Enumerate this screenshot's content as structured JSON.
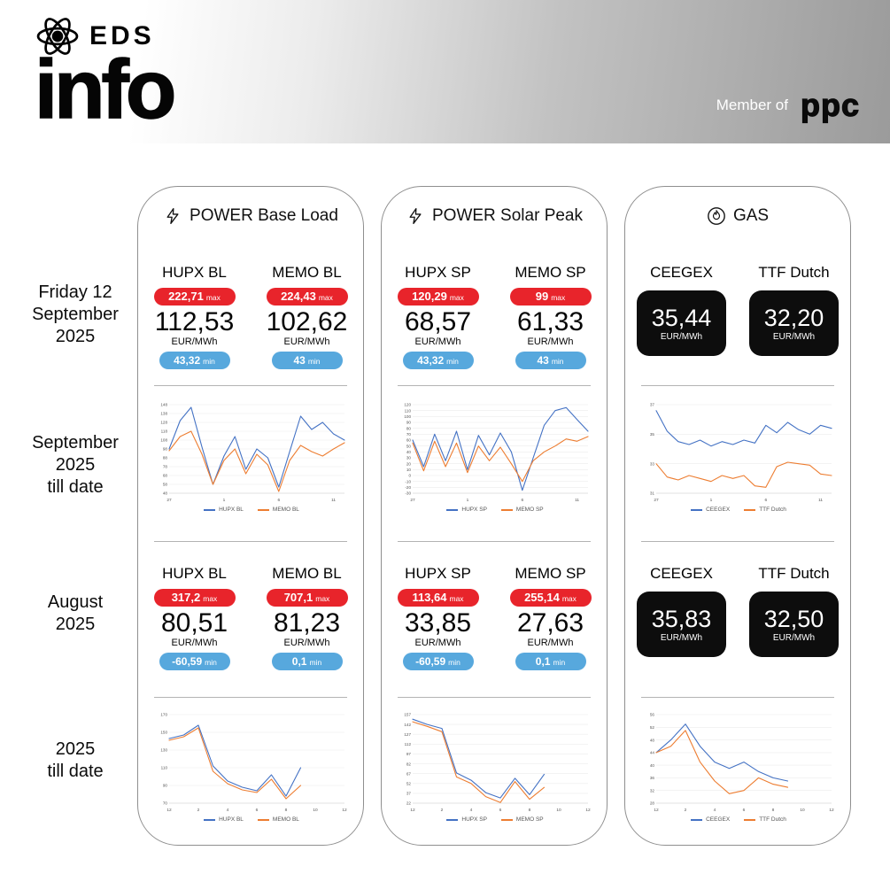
{
  "header": {
    "brand_top": "EDS",
    "brand_main": "info",
    "member_of_label": "Member of",
    "member_brand": "ppc"
  },
  "row_labels": [
    {
      "lines": [
        "Friday 12",
        "September",
        "2025"
      ]
    },
    {
      "lines": [
        "September",
        "2025",
        "till date"
      ]
    },
    {
      "lines": [
        "August",
        "2025"
      ]
    },
    {
      "lines": [
        "2025",
        "till date"
      ]
    }
  ],
  "shared": {
    "max_suffix": "max",
    "min_suffix": "min",
    "unit": "EUR/MWh"
  },
  "colors": {
    "max_pill": "#e8242b",
    "min_pill": "#57a8dd",
    "series_blue": "#4472c4",
    "series_orange": "#ed7d31",
    "gas_card_bg": "#0d0d0d"
  },
  "panels": [
    {
      "icon": "lightning",
      "title": "POWER Base Load",
      "friday": {
        "cards": [
          {
            "name": "HUPX BL",
            "max": "222,71",
            "big": "112,53",
            "min": "43,32"
          },
          {
            "name": "MEMO BL",
            "max": "224,43",
            "big": "102,62",
            "min": "43"
          }
        ]
      },
      "august": {
        "cards": [
          {
            "name": "HUPX BL",
            "max": "317,2",
            "big": "80,51",
            "min": "-60,59"
          },
          {
            "name": "MEMO BL",
            "max": "707,1",
            "big": "81,23",
            "min": "0,1"
          }
        ]
      }
    },
    {
      "icon": "lightning",
      "title": "POWER Solar Peak",
      "friday": {
        "cards": [
          {
            "name": "HUPX SP",
            "max": "120,29",
            "big": "68,57",
            "min": "43,32"
          },
          {
            "name": "MEMO SP",
            "max": "99",
            "big": "61,33",
            "min": "43"
          }
        ]
      },
      "august": {
        "cards": [
          {
            "name": "HUPX SP",
            "max": "113,64",
            "big": "33,85",
            "min": "-60,59"
          },
          {
            "name": "MEMO SP",
            "max": "255,14",
            "big": "27,63",
            "min": "0,1"
          }
        ]
      }
    },
    {
      "icon": "flame",
      "title": "GAS",
      "friday": {
        "cards": [
          {
            "name": "CEEGEX",
            "big": "35,44"
          },
          {
            "name": "TTF Dutch",
            "big": "32,20"
          }
        ]
      },
      "august": {
        "cards": [
          {
            "name": "CEEGEX",
            "big": "35,83"
          },
          {
            "name": "TTF Dutch",
            "big": "32,50"
          }
        ]
      }
    }
  ],
  "chart_data": [
    {
      "id": "power-base-load-september",
      "type": "line",
      "title": "POWER Base Load - September 2025 till date",
      "ylim": [
        48,
        148
      ],
      "yticks": [
        148,
        138,
        128,
        118,
        108,
        98,
        88,
        78,
        68,
        58,
        48
      ],
      "x_range": [
        0,
        16
      ],
      "xticks": [
        {
          "label": "27",
          "x": 0
        },
        {
          "label": "1",
          "x": 5
        },
        {
          "label": "6",
          "x": 10
        },
        {
          "label": "11",
          "x": 15
        }
      ],
      "grid": true,
      "legend_position": "bottom",
      "series": [
        {
          "name": "HUPX BL",
          "color": "#4472c4",
          "x": [
            0,
            1,
            2,
            3,
            4,
            5,
            6,
            7,
            8,
            9,
            10,
            11,
            12,
            13,
            14,
            15,
            16
          ],
          "values": [
            98,
            130,
            145,
            100,
            58,
            90,
            112,
            75,
            98,
            88,
            55,
            95,
            135,
            120,
            128,
            115,
            108
          ]
        },
        {
          "name": "MEMO BL",
          "color": "#ed7d31",
          "x": [
            0,
            1,
            2,
            3,
            4,
            5,
            6,
            7,
            8,
            9,
            10,
            11,
            12,
            13,
            14,
            15,
            16
          ],
          "values": [
            96,
            112,
            118,
            92,
            58,
            85,
            98,
            70,
            92,
            80,
            50,
            85,
            102,
            95,
            90,
            98,
            105
          ]
        }
      ]
    },
    {
      "id": "power-solar-peak-september",
      "type": "line",
      "title": "POWER Solar Peak - September 2025 till date",
      "ylim": [
        -30,
        120
      ],
      "yticks": [
        120,
        110,
        100,
        90,
        80,
        70,
        60,
        50,
        40,
        30,
        20,
        10,
        0,
        -10,
        -20,
        -30
      ],
      "x_range": [
        0,
        16
      ],
      "xticks": [
        {
          "label": "27",
          "x": 0
        },
        {
          "label": "1",
          "x": 5
        },
        {
          "label": "6",
          "x": 10
        },
        {
          "label": "11",
          "x": 15
        }
      ],
      "grid": true,
      "legend_position": "bottom",
      "series": [
        {
          "name": "HUPX SP",
          "color": "#4472c4",
          "x": [
            0,
            1,
            2,
            3,
            4,
            5,
            6,
            7,
            8,
            9,
            10,
            11,
            12,
            13,
            14,
            15,
            16
          ],
          "values": [
            60,
            15,
            70,
            25,
            75,
            10,
            68,
            35,
            72,
            40,
            -25,
            30,
            85,
            110,
            115,
            95,
            75
          ]
        },
        {
          "name": "MEMO SP",
          "color": "#ed7d31",
          "x": [
            0,
            1,
            2,
            3,
            4,
            5,
            6,
            7,
            8,
            9,
            10,
            11,
            12,
            13,
            14,
            15,
            16
          ],
          "values": [
            55,
            8,
            58,
            15,
            55,
            5,
            50,
            25,
            48,
            20,
            -10,
            25,
            40,
            50,
            62,
            58,
            66
          ]
        }
      ]
    },
    {
      "id": "gas-september",
      "type": "line",
      "title": "GAS - September 2025 till date",
      "ylim": [
        31,
        37
      ],
      "yticks": [
        37,
        35,
        33,
        31
      ],
      "x_range": [
        0,
        16
      ],
      "xticks": [
        {
          "label": "27",
          "x": 0
        },
        {
          "label": "1",
          "x": 5
        },
        {
          "label": "6",
          "x": 10
        },
        {
          "label": "11",
          "x": 15
        }
      ],
      "grid": true,
      "legend_position": "bottom",
      "series": [
        {
          "name": "CEEGEX",
          "color": "#4472c4",
          "x": [
            0,
            1,
            2,
            3,
            4,
            5,
            6,
            7,
            8,
            9,
            10,
            11,
            12,
            13,
            14,
            15,
            16
          ],
          "values": [
            36.6,
            35.2,
            34.5,
            34.3,
            34.6,
            34.2,
            34.5,
            34.3,
            34.6,
            34.4,
            35.6,
            35.1,
            35.8,
            35.3,
            35.0,
            35.6,
            35.4
          ]
        },
        {
          "name": "TTF Dutch",
          "color": "#ed7d31",
          "x": [
            0,
            1,
            2,
            3,
            4,
            5,
            6,
            7,
            8,
            9,
            10,
            11,
            12,
            13,
            14,
            15,
            16
          ],
          "values": [
            33.0,
            32.1,
            31.9,
            32.2,
            32.0,
            31.8,
            32.2,
            32.0,
            32.2,
            31.5,
            31.4,
            32.8,
            33.1,
            33.0,
            32.9,
            32.3,
            32.2
          ]
        }
      ]
    },
    {
      "id": "power-base-load-2025",
      "type": "line",
      "title": "POWER Base Load - 2025 till date",
      "ylim": [
        70,
        170
      ],
      "yticks": [
        170,
        150,
        130,
        110,
        90,
        70
      ],
      "x_range": [
        0,
        12
      ],
      "xticks": [
        {
          "label": "12",
          "x": 0
        },
        {
          "label": "2",
          "x": 2
        },
        {
          "label": "4",
          "x": 4
        },
        {
          "label": "6",
          "x": 6
        },
        {
          "label": "8",
          "x": 8
        },
        {
          "label": "10",
          "x": 10
        },
        {
          "label": "12",
          "x": 12
        }
      ],
      "grid": true,
      "legend_position": "bottom",
      "series": [
        {
          "name": "HUPX BL",
          "color": "#4472c4",
          "x": [
            0,
            1,
            2,
            3,
            4,
            5,
            6,
            7,
            8,
            9
          ],
          "values": [
            143,
            147,
            158,
            112,
            95,
            88,
            84,
            102,
            78,
            110
          ]
        },
        {
          "name": "MEMO BL",
          "color": "#ed7d31",
          "x": [
            0,
            1,
            2,
            3,
            4,
            5,
            6,
            7,
            8,
            9
          ],
          "values": [
            141,
            145,
            155,
            106,
            92,
            85,
            82,
            97,
            75,
            90
          ]
        }
      ]
    },
    {
      "id": "power-solar-peak-2025",
      "type": "line",
      "title": "POWER Solar Peak - 2025 till date",
      "ylim": [
        22,
        157
      ],
      "yticks": [
        157,
        142,
        127,
        112,
        97,
        82,
        67,
        52,
        37,
        22
      ],
      "x_range": [
        0,
        12
      ],
      "xticks": [
        {
          "label": "12",
          "x": 0
        },
        {
          "label": "2",
          "x": 2
        },
        {
          "label": "4",
          "x": 4
        },
        {
          "label": "6",
          "x": 6
        },
        {
          "label": "8",
          "x": 8
        },
        {
          "label": "10",
          "x": 10
        },
        {
          "label": "12",
          "x": 12
        }
      ],
      "grid": true,
      "legend_position": "bottom",
      "series": [
        {
          "name": "HUPX SP",
          "color": "#4472c4",
          "x": [
            0,
            1,
            2,
            3,
            4,
            5,
            6,
            7,
            8,
            9
          ],
          "values": [
            150,
            142,
            136,
            68,
            57,
            38,
            30,
            60,
            35,
            66
          ]
        },
        {
          "name": "MEMO SP",
          "color": "#ed7d31",
          "x": [
            0,
            1,
            2,
            3,
            4,
            5,
            6,
            7,
            8,
            9
          ],
          "values": [
            146,
            139,
            131,
            62,
            52,
            32,
            23,
            55,
            28,
            46
          ]
        }
      ]
    },
    {
      "id": "gas-2025",
      "type": "line",
      "title": "GAS - 2025 till date",
      "ylim": [
        28,
        56
      ],
      "yticks": [
        56,
        52,
        48,
        44,
        40,
        36,
        32,
        28
      ],
      "x_range": [
        0,
        12
      ],
      "xticks": [
        {
          "label": "12",
          "x": 0
        },
        {
          "label": "2",
          "x": 2
        },
        {
          "label": "4",
          "x": 4
        },
        {
          "label": "6",
          "x": 6
        },
        {
          "label": "8",
          "x": 8
        },
        {
          "label": "10",
          "x": 10
        },
        {
          "label": "12",
          "x": 12
        }
      ],
      "grid": true,
      "legend_position": "bottom",
      "series": [
        {
          "name": "CEEGEX",
          "color": "#4472c4",
          "x": [
            0,
            1,
            2,
            3,
            4,
            5,
            6,
            7,
            8,
            9
          ],
          "values": [
            44,
            48,
            53,
            46,
            41,
            39,
            41,
            38,
            36,
            35
          ]
        },
        {
          "name": "TTF Dutch",
          "color": "#ed7d31",
          "x": [
            0,
            1,
            2,
            3,
            4,
            5,
            6,
            7,
            8,
            9
          ],
          "values": [
            44,
            46,
            51,
            41,
            35,
            31,
            32,
            36,
            34,
            33
          ]
        }
      ]
    }
  ]
}
